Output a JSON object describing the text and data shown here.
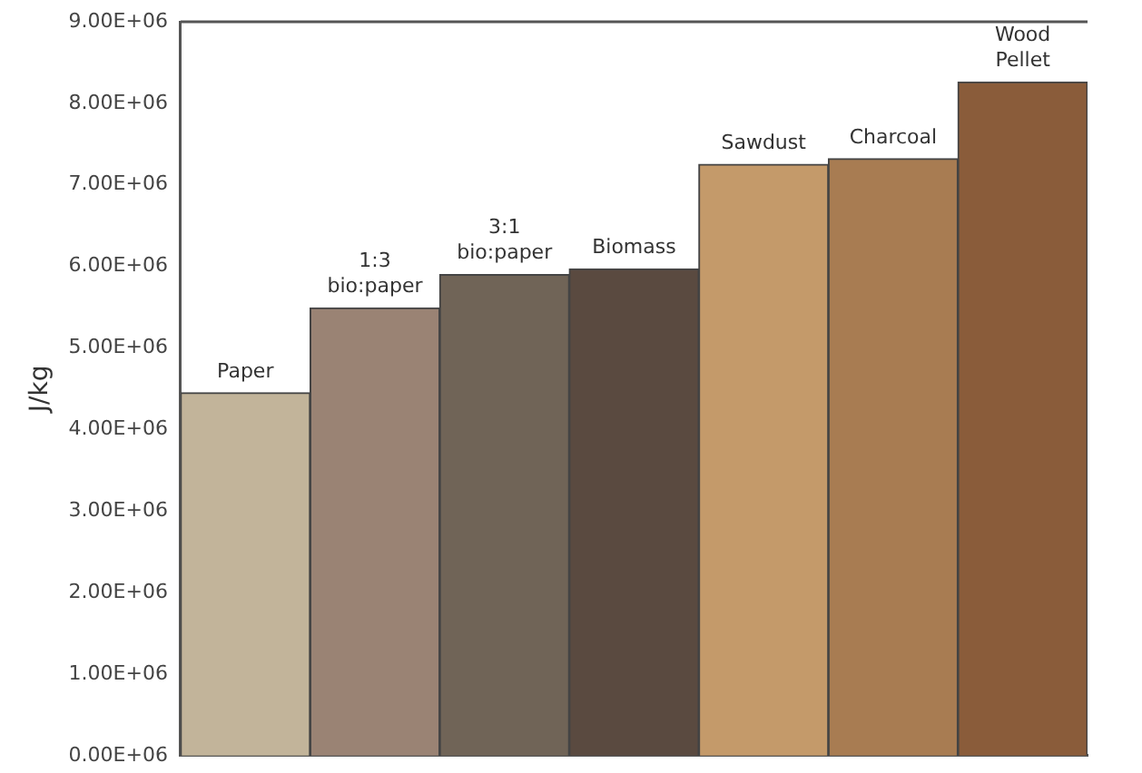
{
  "chart_data": {
    "type": "bar",
    "ylabel": "J/kg",
    "categories": [
      "Paper",
      "1:3 bio:paper",
      "3:1 bio:paper",
      "Biomass",
      "Sawdust",
      "Charcoal",
      "Wood Pellet"
    ],
    "values": [
      4450000,
      5490000,
      5900000,
      5970000,
      7250000,
      7320000,
      8260000
    ],
    "colors": [
      "#c2b49a",
      "#9a8374",
      "#706457",
      "#5a4a40",
      "#c49a6a",
      "#a87c52",
      "#8a5c3a"
    ],
    "ylim": [
      0,
      9000000
    ],
    "yticks": [
      {
        "value": 0,
        "label": "0.00E+06"
      },
      {
        "value": 1000000,
        "label": "1.00E+06"
      },
      {
        "value": 2000000,
        "label": "2.00E+06"
      },
      {
        "value": 3000000,
        "label": "3.00E+06"
      },
      {
        "value": 4000000,
        "label": "4.00E+06"
      },
      {
        "value": 5000000,
        "label": "5.00E+06"
      },
      {
        "value": 6000000,
        "label": "6.00E+06"
      },
      {
        "value": 7000000,
        "label": "7.00E+06"
      },
      {
        "value": 8000000,
        "label": "8.00E+06"
      },
      {
        "value": 9000000,
        "label": "9.00E+06"
      }
    ],
    "grid": false
  }
}
